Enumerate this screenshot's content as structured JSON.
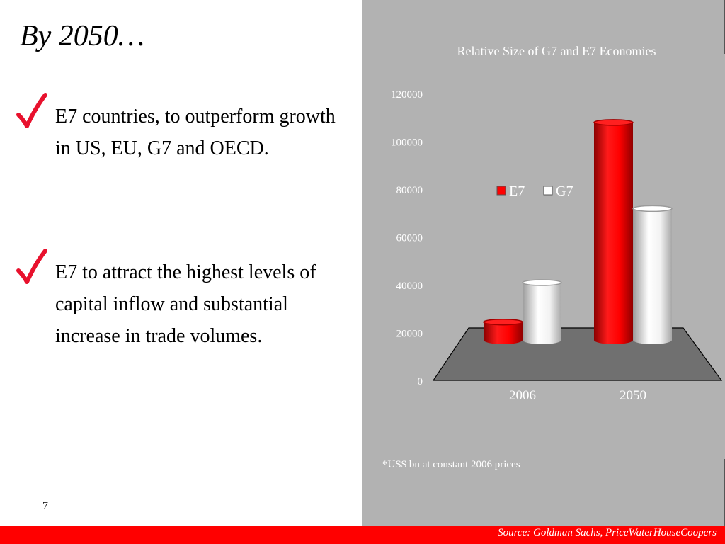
{
  "slide": {
    "title": "By 2050…",
    "page_number": "7",
    "footnote": "*US$ bn at constant 2006 prices",
    "source": "Source: Goldman Sachs, PriceWaterHouseCoopers",
    "accent_color": "#ff0000",
    "panel_color": "#b2b2b2"
  },
  "bullets": [
    {
      "icon": "check-icon",
      "text": "E7 countries, to outperform growth in US, EU, G7 and OECD."
    },
    {
      "icon": "check-icon",
      "text": "E7 to attract the highest levels of capital inflow and substantial increase in trade volumes."
    }
  ],
  "chart_data": {
    "type": "bar",
    "title": "Relative Size of G7 and E7 Economies",
    "categories": [
      "2006",
      "2050"
    ],
    "series": [
      {
        "name": "E7",
        "values": [
          7500,
          91000
        ],
        "color": "#ff0000"
      },
      {
        "name": "G7",
        "values": [
          24000,
          55000
        ],
        "color": "#ffffff"
      }
    ],
    "ylim": [
      0,
      120000
    ],
    "yticks": [
      "0",
      "20000",
      "40000",
      "60000",
      "80000",
      "100000",
      "120000"
    ],
    "legend_position": "center",
    "three_d": true
  }
}
